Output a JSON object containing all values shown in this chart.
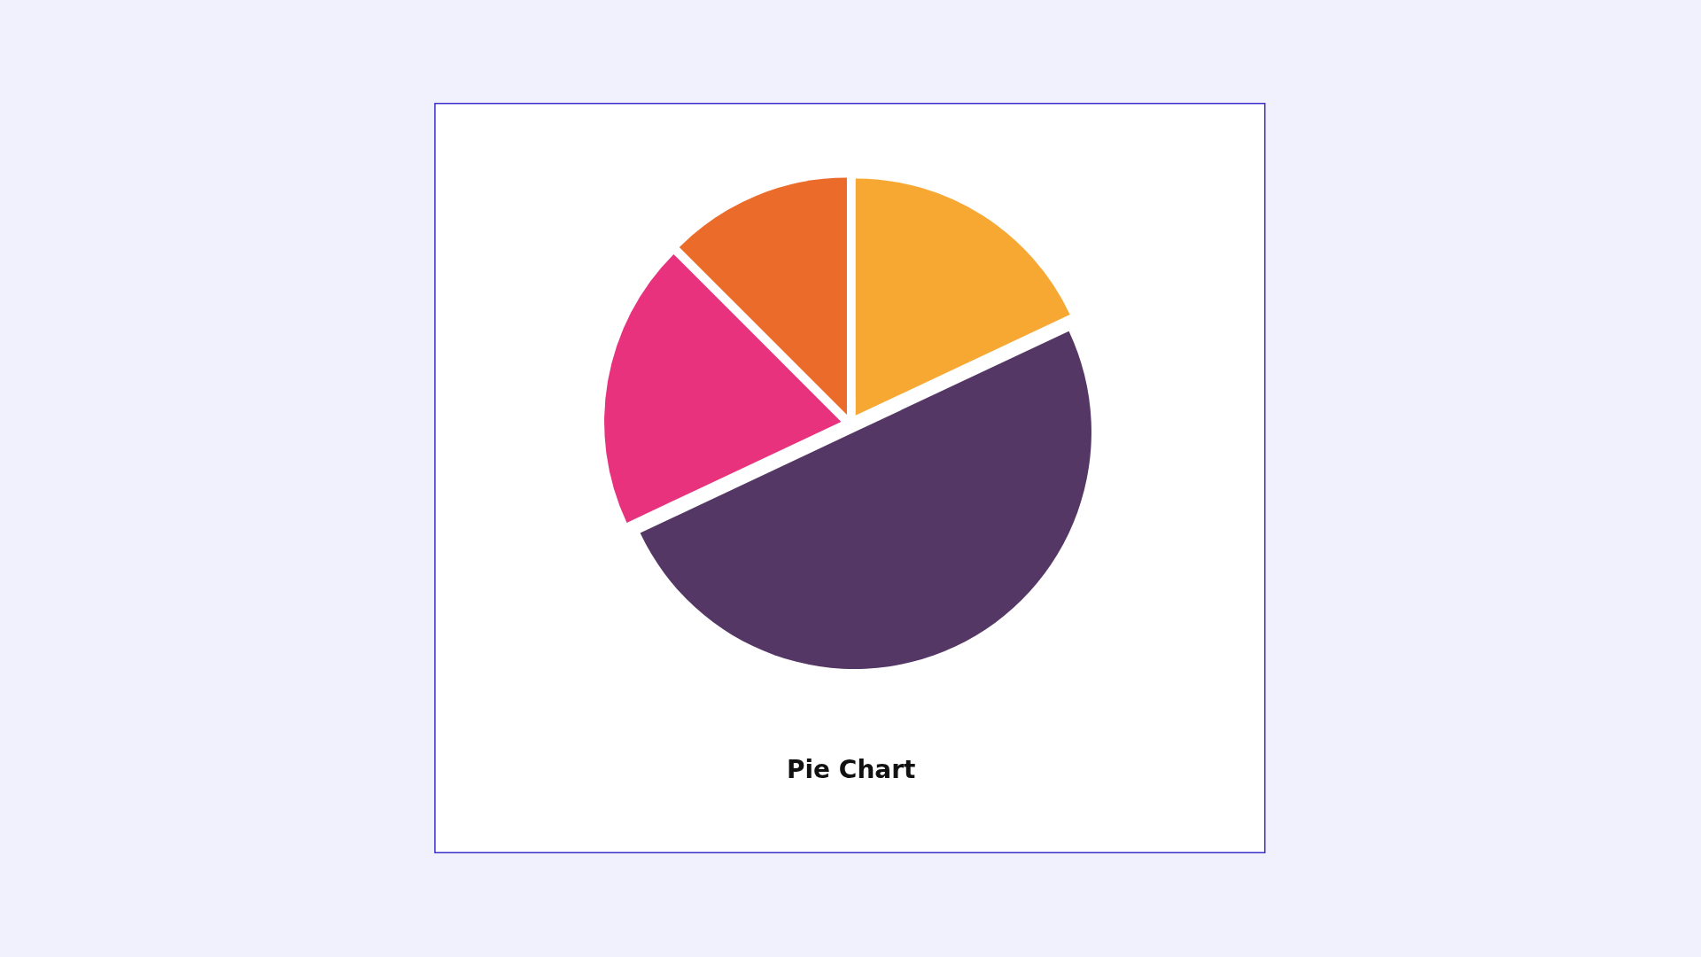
{
  "chart_data": {
    "type": "pie",
    "title": "Pie Chart",
    "categories": [
      null,
      null,
      null,
      null
    ],
    "values": [
      18,
      50,
      19.5,
      12.5
    ],
    "colors": [
      "#f7a833",
      "#553765",
      "#e8327e",
      "#eb6b2a"
    ]
  }
}
